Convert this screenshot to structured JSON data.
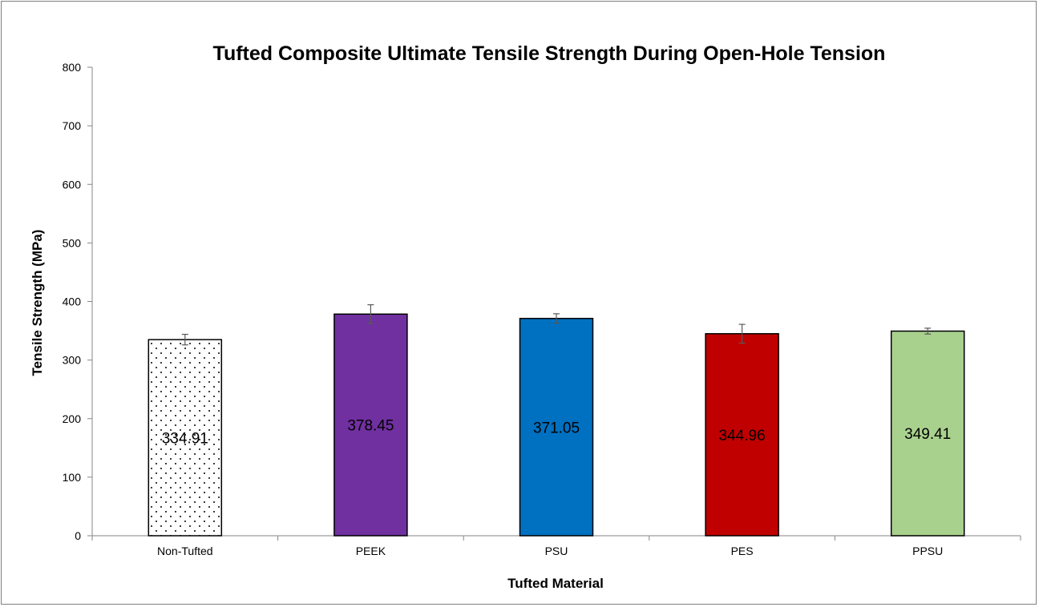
{
  "chart_data": {
    "type": "bar",
    "title": "Tufted Composite Ultimate Tensile Strength During Open-Hole Tension",
    "xlabel": "Tufted Material",
    "ylabel": "Tensile Strength (MPa)",
    "ylim": [
      0,
      800
    ],
    "yticks": [
      "0",
      "100",
      "200",
      "300",
      "400",
      "500",
      "600",
      "700",
      "800"
    ],
    "grid": false,
    "categories": [
      "Non-Tufted",
      "PEEK",
      "PSU",
      "PES",
      "PPSU"
    ],
    "values": [
      334.91,
      378.45,
      371.05,
      344.96,
      349.41
    ],
    "data_labels": [
      "334.91",
      "378.45",
      "371.05",
      "344.96",
      "349.41"
    ],
    "errors": [
      9,
      16,
      8,
      16,
      5
    ],
    "colors": [
      "pattern-dots",
      "#7030a0",
      "#0070c0",
      "#c00000",
      "#a9d18e"
    ]
  }
}
